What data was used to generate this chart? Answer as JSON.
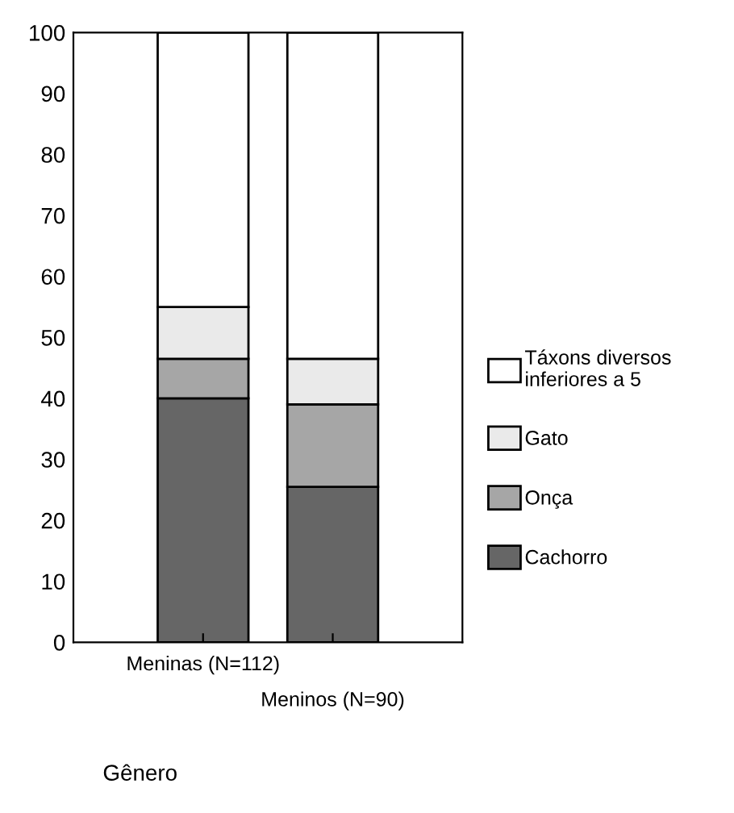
{
  "chart_data": {
    "type": "bar",
    "stacked": true,
    "annotations": [
      "Gênero"
    ],
    "categories": [
      "Meninas (N=112)",
      "Meninos (N=90)"
    ],
    "series": [
      {
        "name": "Cachorro",
        "color": "#666666",
        "values": [
          40,
          25.5
        ]
      },
      {
        "name": "Onça",
        "color": "#a6a6a6",
        "values": [
          6.5,
          13.5
        ]
      },
      {
        "name": "Gato",
        "color": "#eaeaea",
        "values": [
          8.5,
          7.5
        ]
      },
      {
        "name": "Táxons diversos inferiores a 5",
        "color": "#ffffff",
        "values": [
          45,
          53.5
        ]
      }
    ],
    "ylim": [
      0,
      100
    ],
    "yticks": [
      0,
      10,
      20,
      30,
      40,
      50,
      60,
      70,
      80,
      90,
      100
    ],
    "grid": false,
    "legend": "right"
  }
}
